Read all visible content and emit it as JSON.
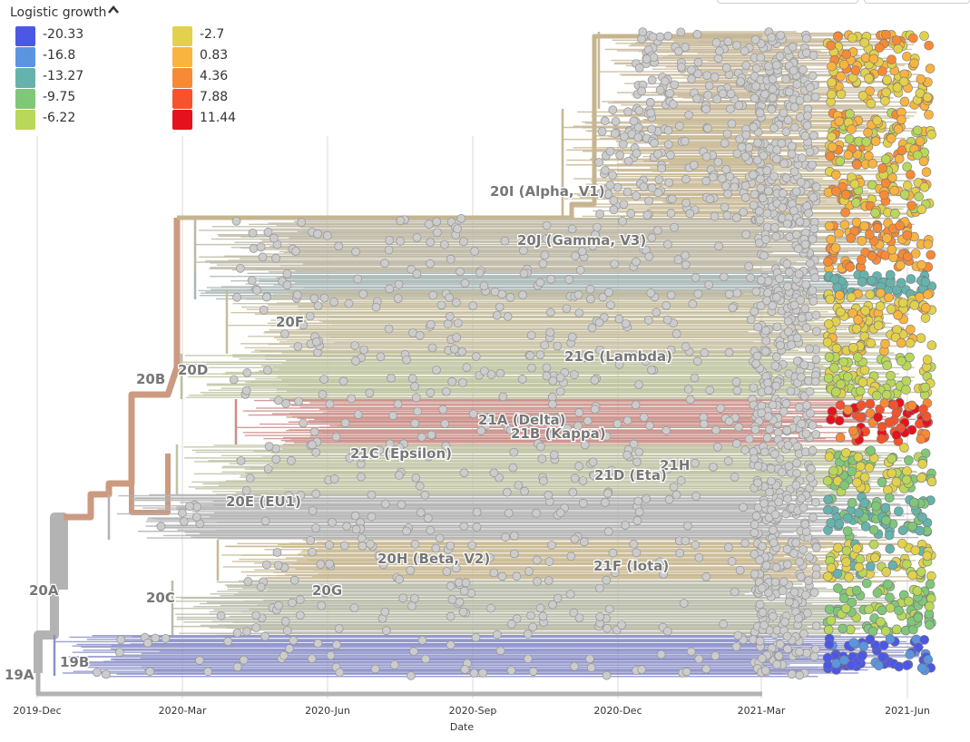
{
  "legend": {
    "title": "Logistic growth",
    "toggle_icon": "chevron-up-icon",
    "items": [
      {
        "label": "-20.33",
        "color": "#4d57e6"
      },
      {
        "label": "-16.8",
        "color": "#5b95e0"
      },
      {
        "label": "-13.27",
        "color": "#66b3ad"
      },
      {
        "label": "-9.75",
        "color": "#80c77a"
      },
      {
        "label": "-6.22",
        "color": "#b9d75a"
      },
      {
        "label": "-2.7",
        "color": "#e2d14d"
      },
      {
        "label": "0.83",
        "color": "#f9b440"
      },
      {
        "label": "4.36",
        "color": "#f88a36"
      },
      {
        "label": "7.88",
        "color": "#f5522d"
      },
      {
        "label": "11.44",
        "color": "#e5121d"
      }
    ]
  },
  "chart_data": {
    "type": "scatter",
    "title": "",
    "xlabel": "Date",
    "ylabel": "",
    "x_ticks": [
      "2019-Dec",
      "2020-Mar",
      "2020-Jun",
      "2020-Sep",
      "2020-Dec",
      "2021-Mar",
      "2021-Jun"
    ],
    "xlim": [
      "2019-12-01",
      "2021-07-15"
    ],
    "grid": true,
    "colors": {
      "branch_base": "#b3b3b3",
      "tip_fill": "#cccccc",
      "tip_stroke": "#999999"
    },
    "clades": [
      {
        "label": "20I (Alpha, V1)"
      },
      {
        "label": "20J (Gamma, V3)"
      },
      {
        "label": "20F"
      },
      {
        "label": "21G (Lambda)"
      },
      {
        "label": "20B"
      },
      {
        "label": "20D"
      },
      {
        "label": "21A (Delta)"
      },
      {
        "label": "21B (Kappa)"
      },
      {
        "label": "21C (Epsilon)"
      },
      {
        "label": "21H"
      },
      {
        "label": "21D (Eta)"
      },
      {
        "label": "20E (EU1)"
      },
      {
        "label": "20H (Beta, V2)"
      },
      {
        "label": "21F (Iota)"
      },
      {
        "label": "20A"
      },
      {
        "label": "20C"
      },
      {
        "label": "20G"
      },
      {
        "label": "19B"
      },
      {
        "label": "19A"
      }
    ]
  }
}
